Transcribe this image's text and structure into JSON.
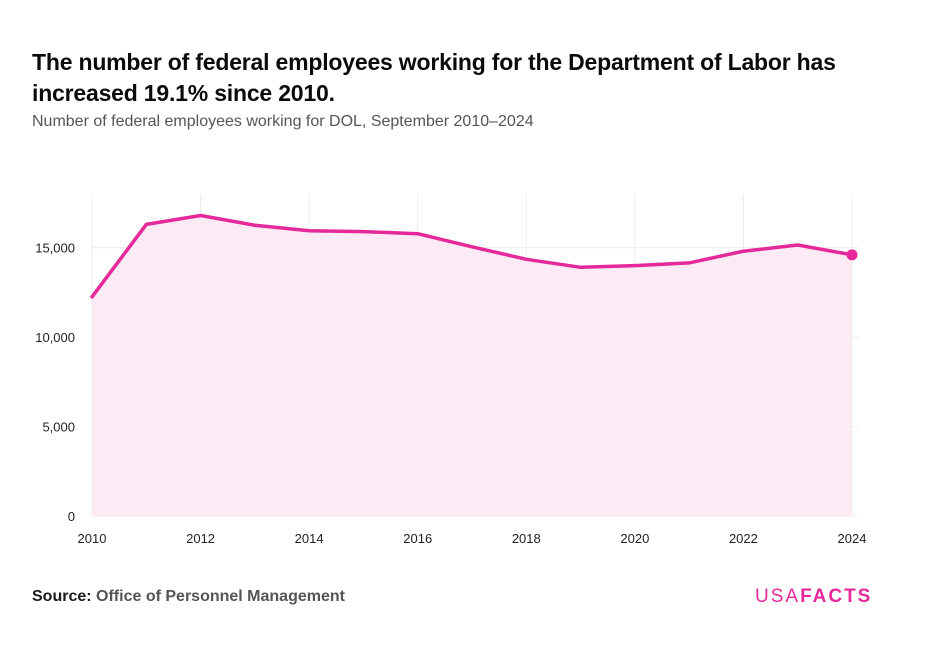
{
  "header": {
    "title": "The number of federal employees working for the Department of Labor has increased 19.1% since 2010.",
    "subtitle": "Number of federal employees working for DOL, September 2010–2024"
  },
  "footer": {
    "source_label": "Source:",
    "source_name": "Office of Personnel Management",
    "logo_light": "USA",
    "logo_bold": "FACTS"
  },
  "colors": {
    "line": "#e5289a",
    "area": "#fcebf4",
    "grid": "#ececec"
  },
  "chart_data": {
    "type": "area",
    "title": "The number of federal employees working for the Department of Labor has increased 19.1% since 2010.",
    "subtitle": "Number of federal employees working for DOL, September 2010–2024",
    "xlabel": "",
    "ylabel": "",
    "x": [
      2010,
      2011,
      2012,
      2013,
      2014,
      2015,
      2016,
      2017,
      2018,
      2019,
      2020,
      2021,
      2022,
      2023,
      2024
    ],
    "values": [
      12250,
      16300,
      16800,
      16250,
      15950,
      15900,
      15780,
      15050,
      14350,
      13900,
      14000,
      14150,
      14800,
      15150,
      14600
    ],
    "xlim": [
      2010,
      2024
    ],
    "ylim": [
      0,
      18000
    ],
    "x_ticks": [
      "2010",
      "2012",
      "2014",
      "2016",
      "2018",
      "2020",
      "2022",
      "2024"
    ],
    "y_ticks": [
      "0",
      "5,000",
      "10,000",
      "15,000"
    ],
    "grid": true,
    "last_point_marker": true
  }
}
